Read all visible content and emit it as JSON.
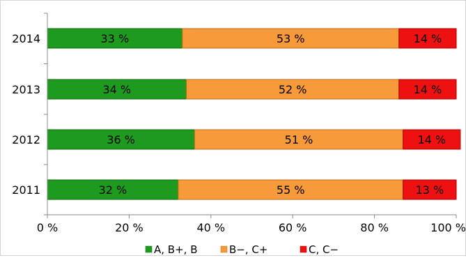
{
  "chart_data": {
    "type": "bar",
    "orientation": "horizontal",
    "stacked": true,
    "categories": [
      "2014",
      "2013",
      "2012",
      "2011"
    ],
    "series": [
      {
        "name": "A, B+, B",
        "color": "#1e9a1e",
        "values": [
          33,
          34,
          36,
          32
        ],
        "labels": [
          "33 %",
          "34 %",
          "36 %",
          "32 %"
        ]
      },
      {
        "name": "B−, C+",
        "color": "#f79a3a",
        "values": [
          53,
          52,
          51,
          55
        ],
        "labels": [
          "53 %",
          "52 %",
          "51 %",
          "55 %"
        ]
      },
      {
        "name": "C, C−",
        "color": "#ee1111",
        "values": [
          14,
          14,
          14,
          13
        ],
        "labels": [
          "14 %",
          "14 %",
          "14 %",
          "13 %"
        ]
      }
    ],
    "x_ticks": [
      "0 %",
      "20 %",
      "40 %",
      "60 %",
      "80 %",
      "100 %"
    ],
    "xlim": [
      0,
      100
    ],
    "xlabel": "",
    "ylabel": "",
    "title": "",
    "grid": false,
    "legend_position": "bottom"
  }
}
